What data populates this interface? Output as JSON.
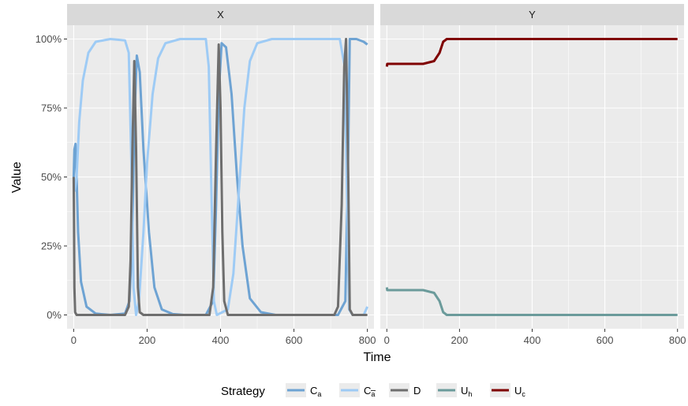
{
  "chart_data": {
    "type": "line",
    "xlabel": "Time",
    "ylabel": "Value",
    "xlim": [
      -18,
      818
    ],
    "ylim": [
      -0.05,
      1.05
    ],
    "x_ticks": [
      0,
      200,
      400,
      600,
      800
    ],
    "x_tick_labels": [
      "0",
      "200",
      "400",
      "600",
      "800"
    ],
    "y_ticks": [
      0,
      0.25,
      0.5,
      0.75,
      1
    ],
    "y_tick_labels": [
      "0%",
      "25%",
      "50%",
      "75%",
      "100%"
    ],
    "grid": true,
    "legend_position": "bottom",
    "legend_title": "Strategy",
    "legend": [
      {
        "key": "Ca",
        "base": "C",
        "sub": "a",
        "overline": false,
        "color": "#6ea3d3"
      },
      {
        "key": "Cabar",
        "base": "C",
        "sub": "a",
        "overline": true,
        "color": "#9ecbf5"
      },
      {
        "key": "D",
        "base": "D",
        "sub": "",
        "overline": false,
        "color": "#6e6e6e"
      },
      {
        "key": "Uh",
        "base": "U",
        "sub": "h",
        "overline": false,
        "color": "#6b9b9b"
      },
      {
        "key": "Uc",
        "base": "U",
        "sub": "c",
        "overline": false,
        "color": "#7f0000"
      }
    ],
    "panels": [
      {
        "strip": "X",
        "series": [
          {
            "key": "Ca",
            "color": "#6ea3d3",
            "points": [
              [
                0,
                0.5
              ],
              [
                2,
                0.6
              ],
              [
                5,
                0.62
              ],
              [
                8,
                0.5
              ],
              [
                12,
                0.3
              ],
              [
                20,
                0.12
              ],
              [
                35,
                0.03
              ],
              [
                60,
                0.005
              ],
              [
                100,
                0
              ],
              [
                140,
                0.005
              ],
              [
                152,
                0.05
              ],
              [
                160,
                0.3
              ],
              [
                165,
                0.7
              ],
              [
                172,
                0.94
              ],
              [
                180,
                0.88
              ],
              [
                190,
                0.6
              ],
              [
                205,
                0.3
              ],
              [
                220,
                0.1
              ],
              [
                240,
                0.02
              ],
              [
                270,
                0.003
              ],
              [
                300,
                0
              ],
              [
                360,
                0
              ],
              [
                380,
                0.05
              ],
              [
                388,
                0.4
              ],
              [
                395,
                0.8
              ],
              [
                403,
                0.985
              ],
              [
                415,
                0.97
              ],
              [
                430,
                0.8
              ],
              [
                445,
                0.5
              ],
              [
                460,
                0.25
              ],
              [
                480,
                0.06
              ],
              [
                510,
                0.01
              ],
              [
                550,
                0
              ],
              [
                720,
                0
              ],
              [
                740,
                0.05
              ],
              [
                748,
                0.6
              ],
              [
                752,
                1
              ],
              [
                770,
                1
              ],
              [
                790,
                0.99
              ],
              [
                800,
                0.98
              ]
            ]
          },
          {
            "key": "Cabar",
            "color": "#9ecbf5",
            "points": [
              [
                0,
                0.5
              ],
              [
                3,
                0.45
              ],
              [
                8,
                0.5
              ],
              [
                15,
                0.7
              ],
              [
                25,
                0.85
              ],
              [
                40,
                0.95
              ],
              [
                60,
                0.99
              ],
              [
                100,
                1
              ],
              [
                140,
                0.995
              ],
              [
                150,
                0.95
              ],
              [
                158,
                0.5
              ],
              [
                163,
                0.1
              ],
              [
                170,
                0
              ],
              [
                178,
                0.05
              ],
              [
                190,
                0.3
              ],
              [
                200,
                0.55
              ],
              [
                215,
                0.8
              ],
              [
                230,
                0.93
              ],
              [
                250,
                0.985
              ],
              [
                290,
                1
              ],
              [
                360,
                1
              ],
              [
                368,
                0.9
              ],
              [
                376,
                0.4
              ],
              [
                382,
                0.05
              ],
              [
                390,
                0
              ],
              [
                420,
                0.02
              ],
              [
                435,
                0.15
              ],
              [
                450,
                0.45
              ],
              [
                465,
                0.75
              ],
              [
                480,
                0.92
              ],
              [
                500,
                0.985
              ],
              [
                540,
                1
              ],
              [
                725,
                1
              ],
              [
                738,
                0.9
              ],
              [
                745,
                0.4
              ],
              [
                750,
                0.02
              ],
              [
                760,
                0
              ],
              [
                790,
                0
              ],
              [
                800,
                0.03
              ]
            ]
          },
          {
            "key": "D",
            "color": "#6e6e6e",
            "points": [
              [
                0,
                0.5
              ],
              [
                1,
                0.35
              ],
              [
                2,
                0.1
              ],
              [
                4,
                0.01
              ],
              [
                8,
                0
              ],
              [
                140,
                0
              ],
              [
                150,
                0.03
              ],
              [
                155,
                0.2
              ],
              [
                160,
                0.6
              ],
              [
                165,
                0.92
              ],
              [
                170,
                0.6
              ],
              [
                175,
                0.1
              ],
              [
                180,
                0.01
              ],
              [
                190,
                0
              ],
              [
                370,
                0
              ],
              [
                380,
                0.1
              ],
              [
                388,
                0.6
              ],
              [
                395,
                0.98
              ],
              [
                400,
                0.75
              ],
              [
                405,
                0.3
              ],
              [
                410,
                0.05
              ],
              [
                420,
                0
              ],
              [
                710,
                0
              ],
              [
                720,
                0.03
              ],
              [
                730,
                0.4
              ],
              [
                737,
                0.9
              ],
              [
                742,
                1
              ],
              [
                748,
                0.5
              ],
              [
                752,
                0.02
              ],
              [
                760,
                0
              ],
              [
                800,
                0
              ]
            ]
          }
        ]
      },
      {
        "strip": "Y",
        "series": [
          {
            "key": "Uc",
            "color": "#7f0000",
            "points": [
              [
                0,
                0.9
              ],
              [
                1,
                0.91
              ],
              [
                5,
                0.91
              ],
              [
                100,
                0.91
              ],
              [
                130,
                0.92
              ],
              [
                145,
                0.95
              ],
              [
                155,
                0.99
              ],
              [
                165,
                1
              ],
              [
                800,
                1
              ]
            ]
          },
          {
            "key": "Uh",
            "color": "#6b9b9b",
            "points": [
              [
                0,
                0.1
              ],
              [
                1,
                0.09
              ],
              [
                5,
                0.09
              ],
              [
                100,
                0.09
              ],
              [
                130,
                0.08
              ],
              [
                145,
                0.05
              ],
              [
                155,
                0.01
              ],
              [
                165,
                0
              ],
              [
                800,
                0
              ]
            ]
          }
        ]
      }
    ]
  }
}
